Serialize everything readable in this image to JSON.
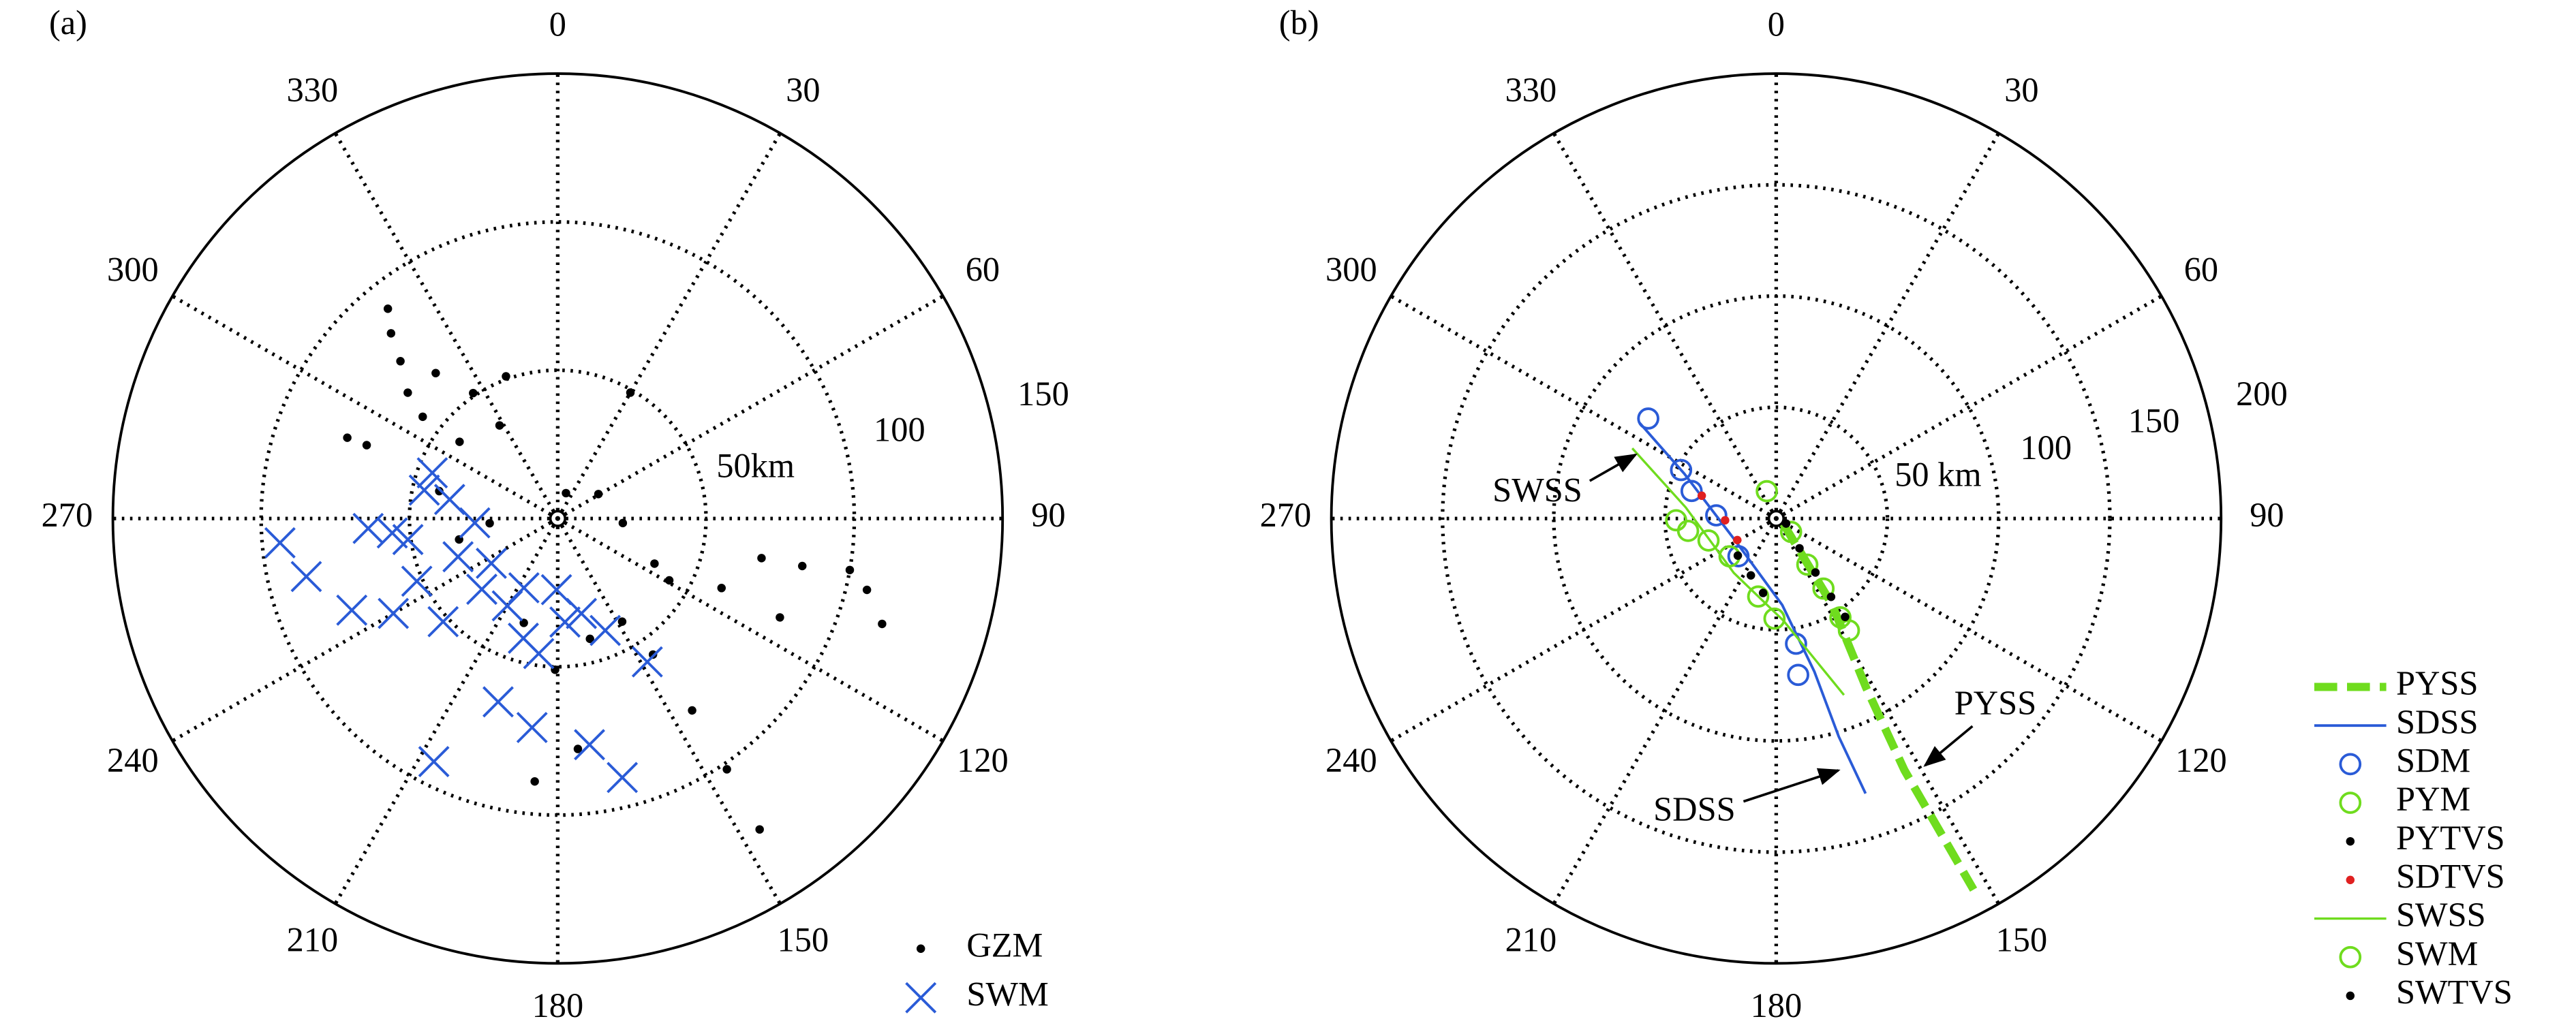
{
  "chart_data": [
    {
      "type": "polar",
      "panel_label": "(a)",
      "theta_ticks": [
        0,
        30,
        60,
        90,
        120,
        150,
        180,
        210,
        240,
        270,
        300,
        330
      ],
      "rlim": [
        0,
        150
      ],
      "rticks": [
        {
          "value": 50,
          "label": "50km"
        },
        100,
        150
      ],
      "legend": "lower right",
      "series": [
        {
          "name": "GZM",
          "marker": "dot",
          "color": "#000000",
          "theta": [
            321,
            318,
            315,
            291,
            291,
            310,
            320,
            326,
            340,
            328,
            308,
            307,
            30,
            18,
            59,
            94,
            115,
            119,
            113,
            101,
            101,
            100,
            103,
            108,
            114,
            145,
            146,
            147,
            175,
            185,
            266,
            258,
            198,
            165,
            148,
            181,
            145,
            283
          ],
          "r": [
            91,
            84,
            75,
            76,
            69,
            66,
            64,
            51,
            51,
            37,
            42,
            57,
            49,
            9,
            16,
            22,
            36,
            43,
            60,
            70,
            84,
            100,
            107,
            115,
            82,
            79,
            102,
            125,
            78,
            89,
            23,
            34,
            37,
            42,
            41,
            51,
            56,
            41
          ]
        },
        {
          "name": "SWM",
          "marker": "x",
          "color": "#2a5bd7",
          "theta": [
            265,
            257,
            246,
            240,
            267,
            262,
            290,
            280,
            267,
            236,
            210,
            196,
            188,
            176,
            166,
            157,
            148,
            198,
            187,
            207,
            166,
            172,
            249,
            246,
            228,
            227,
            206,
            181,
            282,
            265
          ],
          "r": [
            94,
            87,
            76,
            64,
            64,
            51,
            45,
            37,
            28,
            27,
            34,
            42,
            46,
            35,
            33,
            41,
            57,
            65,
            71,
            92,
            90,
            77,
            36,
            52,
            52,
            35,
            26,
            24,
            46,
            56
          ]
        }
      ]
    },
    {
      "type": "polar",
      "panel_label": "(b)",
      "theta_ticks": [
        0,
        30,
        60,
        90,
        120,
        150,
        180,
        210,
        240,
        270,
        300,
        330
      ],
      "rlim": [
        0,
        200
      ],
      "rticks": [
        {
          "value": 50,
          "label": "50 km"
        },
        100,
        150,
        200
      ],
      "legend": "right",
      "annotations": [
        "SWSS",
        "SDSS",
        "PYSS"
      ],
      "series": [
        {
          "name": "PYSS",
          "line": "dashed",
          "color": "#6fdc1e",
          "theta": [
            127,
            147,
            152,
            153,
            152
          ],
          "r": [
            4,
            46,
            86,
            127,
            189
          ]
        },
        {
          "name": "SDSS",
          "line": "solid",
          "color": "#2a5bd7",
          "theta": [
            305,
            296,
            243,
            176,
            166,
            164,
            162
          ],
          "r": [
            75,
            46,
            21,
            39,
            71,
            102,
            130
          ]
        },
        {
          "name": "SDM",
          "marker": "circle",
          "color": "#2a5bd7",
          "theta": [
            308,
            297,
            288,
            273,
            225,
            171,
            172
          ],
          "r": [
            73,
            48,
            40,
            27,
            24,
            57,
            71
          ]
        },
        {
          "name": "PYM",
          "marker": "circle",
          "color": "#6fdc1e",
          "theta": [
            341,
            132,
            146,
            146,
            147,
            147
          ],
          "r": [
            13,
            9,
            25,
            38,
            53,
            60
          ]
        },
        {
          "name": "PYTVS",
          "marker": "dot",
          "color": "#000000",
          "theta": [
            117,
            142,
            144,
            145,
            145
          ],
          "r": [
            5,
            17,
            30,
            43,
            54
          ]
        },
        {
          "name": "SDTVS",
          "marker": "dot",
          "color": "#e02020",
          "theta": [
            287,
            268,
            241
          ],
          "r": [
            35,
            23,
            20
          ]
        },
        {
          "name": "SWSS",
          "line": "thin",
          "color": "#6fdc1e",
          "theta": [
            296,
            277,
            218,
            176,
            159
          ],
          "r": [
            72,
            41,
            31,
            46,
            85
          ]
        },
        {
          "name": "SWM",
          "marker": "circle",
          "color": "#6fdc1e",
          "theta": [
            269,
            262,
            252,
            231,
            193,
            181
          ],
          "r": [
            45,
            40,
            32,
            27,
            36,
            45
          ]
        },
        {
          "name": "SWTVS",
          "marker": "dot",
          "color": "#000000",
          "theta": [
            226,
            204,
            190
          ],
          "r": [
            24,
            28,
            34
          ]
        }
      ]
    }
  ]
}
